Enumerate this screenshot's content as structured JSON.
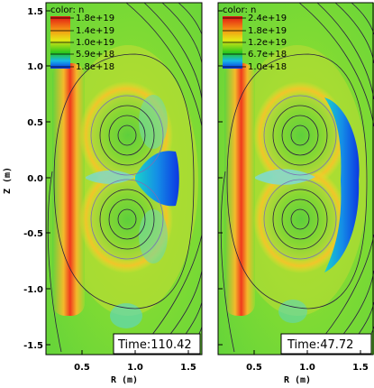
{
  "chart_data": {
    "type": "heatmap",
    "ylabel": "Z (m)",
    "panels": [
      {
        "xlabel": "R (m)",
        "legend_title": "color: n",
        "legend_values": [
          "1.8e+19",
          "1.4e+19",
          "1.0e+19",
          "5.9e+18",
          "1.8e+18"
        ],
        "time_label": "Time:110.42",
        "xticks": [
          "0.5",
          "1.0",
          "1.5"
        ],
        "yticks": [
          "1.5",
          "1.0",
          "0.5",
          "0.0",
          "-0.5",
          "-1.0",
          "-1.5"
        ],
        "xlim": [
          0.2,
          1.6
        ],
        "ylim": [
          -1.6,
          1.6
        ]
      },
      {
        "xlabel": "R (m)",
        "legend_title": "color: n",
        "legend_values": [
          "2.4e+19",
          "1.8e+19",
          "1.2e+19",
          "6.7e+18",
          "1.0e+18"
        ],
        "time_label": "Time:47.72",
        "xticks": [
          "0.5",
          "1.0",
          "1.5"
        ],
        "yticks": [],
        "xlim": [
          0.2,
          1.6
        ],
        "ylim": [
          -1.6,
          1.6
        ]
      }
    ],
    "colorbar": [
      "#e11",
      "#f90",
      "#ee1",
      "#2c2",
      "#04e"
    ]
  }
}
